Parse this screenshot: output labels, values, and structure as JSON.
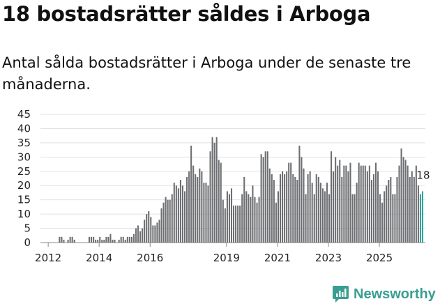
{
  "header": {
    "title": "18 bostadsrätter såldes i Arboga",
    "subtitle": "Antal sålda bostadsrätter i Arboga under de senaste tre månaderna."
  },
  "chart_data": {
    "type": "bar",
    "title": "18 bostadsrätter såldes i Arboga",
    "subtitle": "Antal sålda bostadsrätter i Arboga under de senaste tre månaderna.",
    "xlabel": "",
    "ylabel": "",
    "ylim": [
      0,
      45
    ],
    "yticks": [
      0,
      5,
      10,
      15,
      20,
      25,
      30,
      35,
      40,
      45
    ],
    "xticks": [
      "2012",
      "2014",
      "2016",
      "2019",
      "2021",
      "2023",
      "2025"
    ],
    "grid": true,
    "x_start": "2011-10",
    "bar_color": "#6d6e71",
    "highlight_color": "#2fa39a",
    "highlight_last": 2,
    "last_value_label": "18",
    "values": [
      0,
      0,
      0,
      0,
      0,
      0,
      0,
      0,
      2,
      2,
      1,
      0,
      1,
      2,
      2,
      1,
      0,
      0,
      0,
      0,
      0,
      0,
      2,
      2,
      2,
      1,
      1,
      2,
      1,
      1,
      2,
      2,
      3,
      1,
      1,
      0,
      1,
      2,
      2,
      1,
      2,
      2,
      2,
      3,
      5,
      6,
      4,
      5,
      8,
      10,
      11,
      9,
      6,
      6,
      7,
      8,
      12,
      14,
      16,
      15,
      15,
      17,
      21,
      20,
      19,
      22,
      20,
      18,
      23,
      25,
      34,
      27,
      24,
      23,
      26,
      25,
      21,
      21,
      20,
      32,
      37,
      35,
      37,
      29,
      28,
      15,
      12,
      18,
      17,
      19,
      13,
      13,
      13,
      13,
      17,
      23,
      18,
      17,
      16,
      20,
      16,
      14,
      16,
      31,
      30,
      32,
      32,
      26,
      24,
      22,
      14,
      18,
      24,
      25,
      24,
      25,
      28,
      28,
      24,
      23,
      22,
      34,
      30,
      26,
      17,
      24,
      25,
      21,
      17,
      24,
      23,
      21,
      19,
      18,
      21,
      17,
      32,
      25,
      30,
      27,
      29,
      23,
      27,
      27,
      25,
      28,
      17,
      17,
      21,
      28,
      27,
      27,
      27,
      25,
      27,
      22,
      24,
      28,
      25,
      17,
      14,
      18,
      20,
      22,
      23,
      17,
      17,
      23,
      27,
      33,
      30,
      29,
      27,
      23,
      25,
      23,
      27,
      20,
      17,
      18
    ]
  },
  "brand": {
    "name": "Newsworthy",
    "color": "#3a9e92"
  }
}
